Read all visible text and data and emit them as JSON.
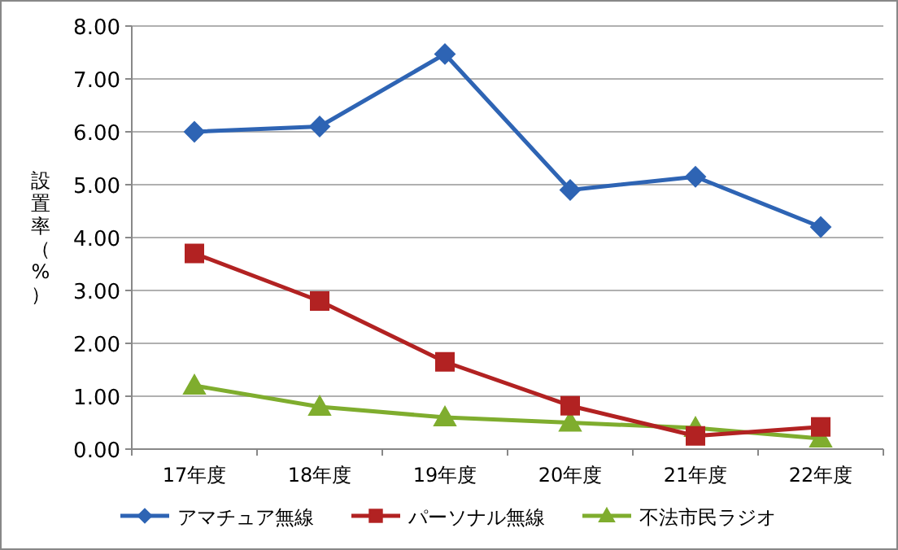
{
  "chart_data": {
    "type": "line",
    "ylabel": "設置率（%）",
    "categories": [
      "17年度",
      "18年度",
      "19年度",
      "20年度",
      "21年度",
      "22年度"
    ],
    "series": [
      {
        "name": "アマチュア無線",
        "color": "#2e64b4",
        "marker": "diamond",
        "values": [
          6.0,
          6.1,
          7.47,
          4.9,
          5.15,
          4.2
        ]
      },
      {
        "name": "パーソナル無線",
        "color": "#b22222",
        "marker": "square",
        "values": [
          3.7,
          2.8,
          1.65,
          0.82,
          0.25,
          0.42
        ]
      },
      {
        "name": "不法市民ラジオ",
        "color": "#7fad2e",
        "marker": "triangle",
        "values": [
          1.2,
          0.8,
          0.6,
          0.5,
          0.4,
          0.2
        ]
      }
    ],
    "ylim": [
      0,
      8
    ],
    "yticks": [
      {
        "value": 0,
        "label": "0.00"
      },
      {
        "value": 1,
        "label": "1.00"
      },
      {
        "value": 2,
        "label": "2.00"
      },
      {
        "value": 3,
        "label": "3.00"
      },
      {
        "value": 4,
        "label": "4.00"
      },
      {
        "value": 5,
        "label": "5.00"
      },
      {
        "value": 6,
        "label": "6.00"
      },
      {
        "value": 7,
        "label": "7.00"
      },
      {
        "value": 8,
        "label": "8.00"
      }
    ],
    "grid": "y",
    "legend": "bottom",
    "line_style": "solid"
  }
}
